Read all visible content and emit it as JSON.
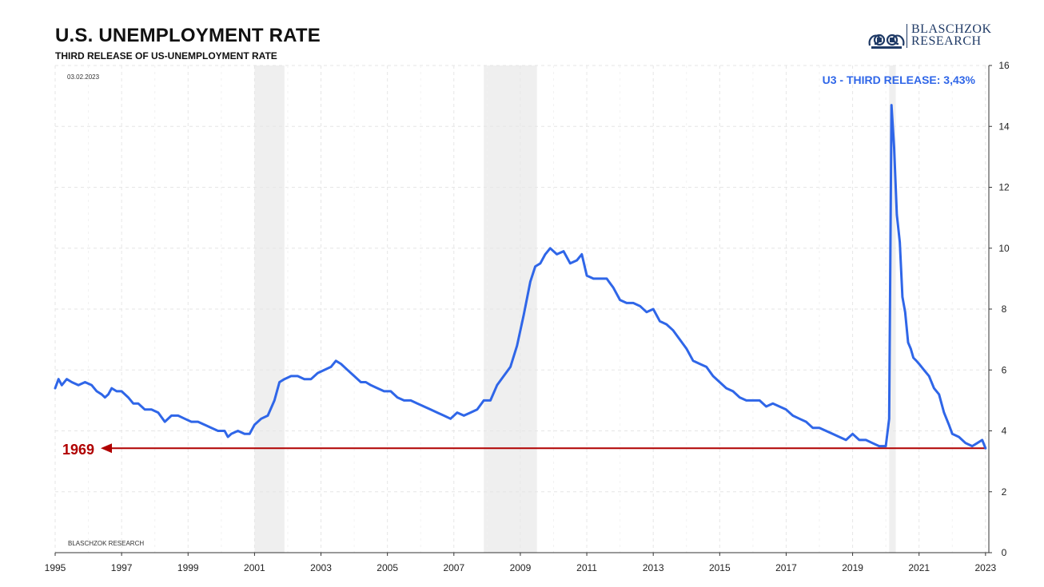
{
  "header": {
    "title": "U.S. UNEMPLOYMENT RATE",
    "subtitle": "THIRD RELEASE OF US-UNEMPLOYMENT RATE"
  },
  "logo": {
    "line1": "BLASCHZOK",
    "line2": "RESEARCH"
  },
  "colors": {
    "series": "#2f66e8",
    "recession": "#efefef",
    "reference": "#b00000",
    "grid": "#e6e6e6"
  },
  "chart_data": {
    "type": "line",
    "date_label": "03.02.2023",
    "watermark": "BLASCHZOK  RESEARCH",
    "annotation": "U3 - THIRD RELEASE: 3,43%",
    "reference_line": {
      "label": "1969",
      "value": 3.43
    },
    "xlim": [
      1995,
      2023.1
    ],
    "ylim": [
      0,
      16
    ],
    "x_ticks": [
      "1995",
      "1997",
      "1999",
      "2001",
      "2003",
      "2005",
      "2007",
      "2009",
      "2011",
      "2013",
      "2015",
      "2017",
      "2019",
      "2021",
      "2023"
    ],
    "y_ticks": [
      "0",
      "2",
      "4",
      "6",
      "8",
      "10",
      "12",
      "14",
      "16"
    ],
    "grid": true,
    "recessions": [
      [
        2001.0,
        2001.9
      ],
      [
        2007.9,
        2009.5
      ],
      [
        2020.1,
        2020.3
      ]
    ],
    "series": [
      {
        "x": [
          1995.0,
          1995.1,
          1995.2,
          1995.35,
          1995.5,
          1995.7,
          1995.9,
          1996.1,
          1996.25,
          1996.4,
          1996.5,
          1996.6,
          1996.7,
          1996.85,
          1997.0,
          1997.2,
          1997.35,
          1997.5,
          1997.7,
          1997.9,
          1998.1,
          1998.3,
          1998.5,
          1998.7,
          1998.9,
          1999.1,
          1999.3,
          1999.5,
          1999.7,
          1999.9,
          2000.1,
          2000.2,
          2000.3,
          2000.5,
          2000.7,
          2000.85,
          2001.0,
          2001.2,
          2001.4,
          2001.6,
          2001.75,
          2001.9,
          2002.1,
          2002.3,
          2002.5,
          2002.7,
          2002.9,
          2003.1,
          2003.3,
          2003.45,
          2003.6,
          2003.8,
          2004.0,
          2004.2,
          2004.35,
          2004.5,
          2004.7,
          2004.9,
          2005.1,
          2005.3,
          2005.5,
          2005.7,
          2005.9,
          2006.1,
          2006.3,
          2006.5,
          2006.7,
          2006.9,
          2007.1,
          2007.3,
          2007.5,
          2007.7,
          2007.9,
          2008.1,
          2008.3,
          2008.5,
          2008.7,
          2008.9,
          2009.1,
          2009.3,
          2009.45,
          2009.6,
          2009.75,
          2009.9,
          2010.1,
          2010.3,
          2010.5,
          2010.7,
          2010.85,
          2011.0,
          2011.2,
          2011.4,
          2011.6,
          2011.8,
          2012.0,
          2012.2,
          2012.4,
          2012.6,
          2012.8,
          2013.0,
          2013.2,
          2013.4,
          2013.6,
          2013.8,
          2014.0,
          2014.2,
          2014.4,
          2014.6,
          2014.8,
          2015.0,
          2015.2,
          2015.4,
          2015.6,
          2015.8,
          2016.0,
          2016.2,
          2016.4,
          2016.6,
          2016.8,
          2017.0,
          2017.2,
          2017.4,
          2017.6,
          2017.8,
          2018.0,
          2018.2,
          2018.4,
          2018.6,
          2018.8,
          2019.0,
          2019.2,
          2019.4,
          2019.6,
          2019.8,
          2020.0,
          2020.1,
          2020.17,
          2020.25,
          2020.33,
          2020.42,
          2020.5,
          2020.58,
          2020.67,
          2020.75,
          2020.83,
          2020.92,
          2021.0,
          2021.15,
          2021.3,
          2021.45,
          2021.6,
          2021.75,
          2021.9,
          2022.0,
          2022.2,
          2022.4,
          2022.6,
          2022.75,
          2022.9,
          2023.0
        ],
        "values": [
          5.4,
          5.7,
          5.5,
          5.7,
          5.6,
          5.5,
          5.6,
          5.5,
          5.3,
          5.2,
          5.1,
          5.2,
          5.4,
          5.3,
          5.3,
          5.1,
          4.9,
          4.9,
          4.7,
          4.7,
          4.6,
          4.3,
          4.5,
          4.5,
          4.4,
          4.3,
          4.3,
          4.2,
          4.1,
          4.0,
          4.0,
          3.8,
          3.9,
          4.0,
          3.9,
          3.9,
          4.2,
          4.4,
          4.5,
          5.0,
          5.6,
          5.7,
          5.8,
          5.8,
          5.7,
          5.7,
          5.9,
          6.0,
          6.1,
          6.3,
          6.2,
          6.0,
          5.8,
          5.6,
          5.6,
          5.5,
          5.4,
          5.3,
          5.3,
          5.1,
          5.0,
          5.0,
          4.9,
          4.8,
          4.7,
          4.6,
          4.5,
          4.4,
          4.6,
          4.5,
          4.6,
          4.7,
          5.0,
          5.0,
          5.5,
          5.8,
          6.1,
          6.8,
          7.8,
          8.9,
          9.4,
          9.5,
          9.8,
          10.0,
          9.8,
          9.9,
          9.5,
          9.6,
          9.8,
          9.1,
          9.0,
          9.0,
          9.0,
          8.7,
          8.3,
          8.2,
          8.2,
          8.1,
          7.9,
          8.0,
          7.6,
          7.5,
          7.3,
          7.0,
          6.7,
          6.3,
          6.2,
          6.1,
          5.8,
          5.6,
          5.4,
          5.3,
          5.1,
          5.0,
          5.0,
          5.0,
          4.8,
          4.9,
          4.8,
          4.7,
          4.5,
          4.4,
          4.3,
          4.1,
          4.1,
          4.0,
          3.9,
          3.8,
          3.7,
          3.9,
          3.7,
          3.7,
          3.6,
          3.5,
          3.5,
          4.4,
          14.7,
          13.3,
          11.1,
          10.2,
          8.4,
          7.9,
          6.9,
          6.7,
          6.4,
          6.3,
          6.2,
          6.0,
          5.8,
          5.4,
          5.2,
          4.6,
          4.2,
          3.9,
          3.8,
          3.6,
          3.5,
          3.6,
          3.7,
          3.43
        ]
      }
    ]
  }
}
